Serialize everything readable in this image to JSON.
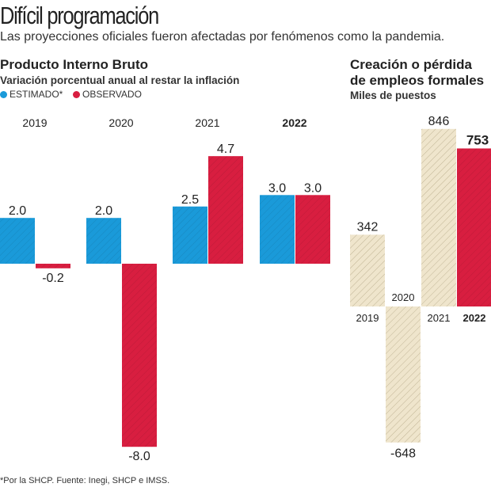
{
  "title": "Difícil programación",
  "subtitle": "Las proyecciones oficiales fueron afectadas por fenómenos como la pandemia.",
  "footnote": "*Por la SHCP. Fuente: Inegi, SHCP e IMSS.",
  "colors": {
    "estimado": "#1a9ad9",
    "observado": "#d81e40",
    "empleos": "#efe5cc"
  },
  "chart_data": [
    {
      "type": "bar",
      "title": "Producto Interno Bruto",
      "subtitle": "Variación porcentual anual al restar la inflación",
      "legend": [
        "ESTIMADO*",
        "OBSERVADO"
      ],
      "categories": [
        "2019",
        "2020",
        "2021",
        "2022"
      ],
      "series": [
        {
          "name": "ESTIMADO*",
          "values": [
            2.0,
            2.0,
            2.5,
            3.0
          ],
          "labels": [
            "2.0",
            "2.0",
            "2.5",
            "3.0"
          ]
        },
        {
          "name": "OBSERVADO",
          "values": [
            -0.2,
            -8.0,
            4.7,
            3.0
          ],
          "labels": [
            "-0.2",
            "-8.0",
            "4.7",
            "3.0"
          ]
        }
      ],
      "ylim": [
        -8,
        4.7
      ]
    },
    {
      "type": "bar",
      "title_line1": "Creación o pérdida",
      "title_line2": "de empleos formales",
      "subtitle": "Miles de puestos",
      "categories": [
        "2019",
        "2020",
        "2021",
        "2022"
      ],
      "values": [
        342,
        -648,
        846,
        753
      ],
      "labels": [
        "342",
        "-648",
        "846",
        "753"
      ],
      "ylim": [
        -648,
        846
      ]
    }
  ]
}
